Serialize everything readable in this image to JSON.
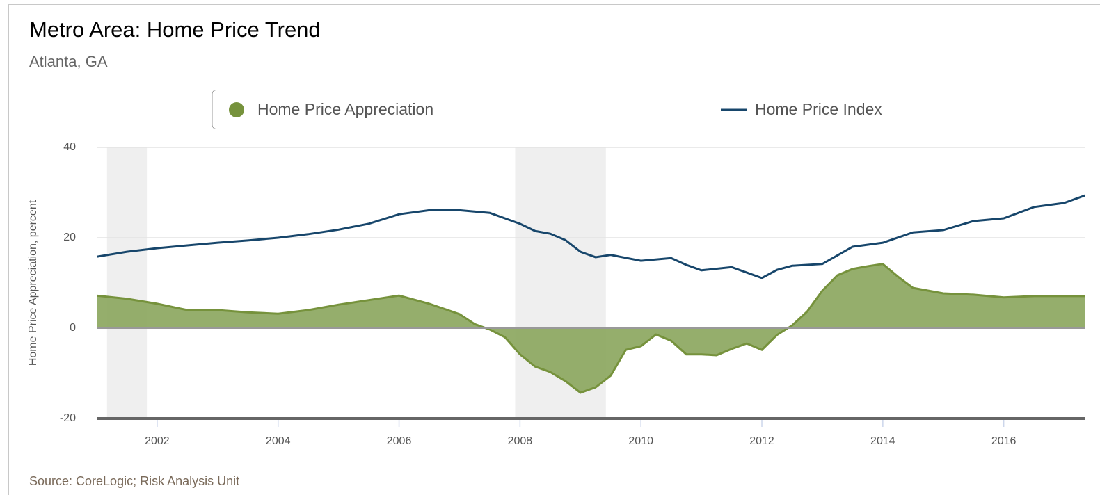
{
  "chart_data": {
    "type": "area-line",
    "title": "Metro Area: Home Price Trend",
    "subtitle": "Atlanta, GA",
    "y_label": "Home Price Appreciation, percent",
    "source": "Source: CoreLogic; Risk Analysis Unit",
    "xlim": [
      2001,
      2017.35
    ],
    "xticks": [
      2002,
      2004,
      2006,
      2008,
      2010,
      2012,
      2014,
      2016
    ],
    "ylim": [
      -20,
      40
    ],
    "yticks": [
      -20,
      0,
      20,
      40
    ],
    "grid": true,
    "bands": [
      [
        2001.17,
        2001.83
      ],
      [
        2007.92,
        2009.42
      ]
    ],
    "series": [
      {
        "name": "Home Price Appreciation",
        "kind": "area",
        "color": "#76923c",
        "x": [
          2001,
          2001.5,
          2002,
          2002.5,
          2003,
          2003.5,
          2004,
          2004.5,
          2005,
          2005.5,
          2006,
          2006.5,
          2007,
          2007.25,
          2007.5,
          2007.75,
          2008,
          2008.25,
          2008.5,
          2008.75,
          2009,
          2009.25,
          2009.5,
          2009.75,
          2010,
          2010.25,
          2010.5,
          2010.75,
          2011,
          2011.25,
          2011.5,
          2011.75,
          2012,
          2012.25,
          2012.5,
          2012.75,
          2013,
          2013.25,
          2013.5,
          2013.75,
          2014,
          2014.25,
          2014.5,
          2015,
          2015.5,
          2016,
          2016.5,
          2017,
          2017.35
        ],
        "values": [
          7.2,
          6.5,
          5.4,
          4.0,
          4.0,
          3.5,
          3.2,
          4.0,
          5.2,
          6.2,
          7.2,
          5.4,
          3.1,
          0.9,
          -0.3,
          -2.0,
          -5.8,
          -8.5,
          -9.7,
          -11.7,
          -14.3,
          -13.1,
          -10.5,
          -4.8,
          -4.0,
          -1.4,
          -2.8,
          -5.8,
          -5.8,
          -6.0,
          -4.6,
          -3.4,
          -4.8,
          -1.5,
          0.6,
          3.7,
          8.3,
          11.7,
          13.1,
          13.7,
          14.2,
          11.4,
          8.9,
          7.7,
          7.4,
          6.8,
          7.1,
          7.1,
          7.1
        ]
      },
      {
        "name": "Home Price Index",
        "kind": "line",
        "color": "#17466b",
        "x": [
          2001,
          2001.5,
          2002,
          2002.5,
          2003,
          2003.5,
          2004,
          2004.5,
          2005,
          2005.5,
          2006,
          2006.5,
          2007,
          2007.5,
          2008,
          2008.25,
          2008.5,
          2008.75,
          2009,
          2009.25,
          2009.5,
          2010,
          2010.5,
          2010.75,
          2011,
          2011.5,
          2011.75,
          2012,
          2012.25,
          2012.5,
          2013,
          2013.5,
          2014,
          2014.5,
          2015,
          2015.5,
          2016,
          2016.5,
          2017,
          2017.35
        ],
        "values": [
          15.8,
          16.9,
          17.7,
          18.3,
          18.9,
          19.4,
          20.0,
          20.8,
          21.8,
          23.1,
          25.2,
          26.1,
          26.1,
          25.5,
          23.1,
          21.5,
          20.9,
          19.5,
          16.9,
          15.7,
          16.2,
          14.9,
          15.5,
          14.0,
          12.8,
          13.5,
          12.3,
          11.1,
          12.9,
          13.8,
          14.2,
          18.0,
          18.9,
          21.2,
          21.7,
          23.7,
          24.3,
          26.8,
          27.7,
          29.4
        ]
      }
    ]
  }
}
